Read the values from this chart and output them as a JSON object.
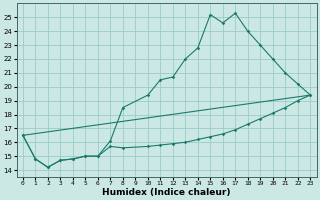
{
  "xlabel": "Humidex (Indice chaleur)",
  "background_color": "#cce8e4",
  "grid_color": "#99cccc",
  "line_color": "#1a7a6a",
  "xlim": [
    -0.5,
    23.5
  ],
  "ylim": [
    13.5,
    26.0
  ],
  "xticks": [
    0,
    1,
    2,
    3,
    4,
    5,
    6,
    7,
    8,
    9,
    10,
    11,
    12,
    13,
    14,
    15,
    16,
    17,
    18,
    19,
    20,
    21,
    22,
    23
  ],
  "yticks": [
    14,
    15,
    16,
    17,
    18,
    19,
    20,
    21,
    22,
    23,
    24,
    25
  ],
  "line1_x": [
    0,
    1,
    2,
    3,
    4,
    5,
    6,
    7,
    8,
    10,
    11,
    12,
    13,
    14,
    15,
    16,
    17,
    18,
    19,
    20,
    21,
    22,
    23
  ],
  "line1_y": [
    16.5,
    14.8,
    14.2,
    14.7,
    14.8,
    15.0,
    15.0,
    16.1,
    18.5,
    19.4,
    20.5,
    20.7,
    22.0,
    22.8,
    25.2,
    24.6,
    25.3,
    24.0,
    23.0,
    22.0,
    21.0,
    20.2,
    19.4
  ],
  "line2_x": [
    0,
    1,
    2,
    3,
    4,
    5,
    6,
    7,
    8,
    10,
    11,
    12,
    13,
    14,
    15,
    16,
    17,
    18,
    19,
    20,
    21,
    22,
    23
  ],
  "line2_y": [
    16.5,
    14.8,
    14.2,
    14.7,
    14.8,
    15.0,
    15.0,
    15.7,
    15.6,
    15.7,
    15.8,
    15.9,
    16.0,
    16.2,
    16.4,
    16.6,
    16.9,
    17.3,
    17.7,
    18.1,
    18.5,
    19.0,
    19.4
  ],
  "line3_x": [
    0,
    23
  ],
  "line3_y": [
    16.5,
    19.4
  ],
  "xlabel_fontsize": 6.5,
  "xlabel_fontweight": "bold",
  "tick_fontsize": 4.5,
  "marker_size": 1.8,
  "line_width": 0.8
}
